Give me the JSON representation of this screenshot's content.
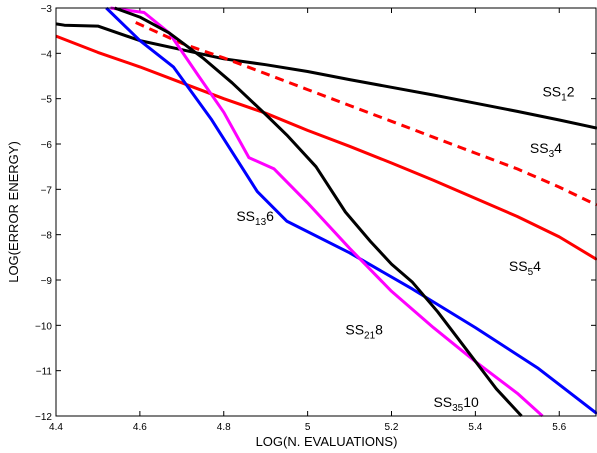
{
  "chart_data": {
    "type": "line",
    "title": "",
    "xlabel": "LOG(N. EVALUATIONS)",
    "ylabel": "LOG(ERROR ENERGY)",
    "xlim": [
      4.4,
      5.69
    ],
    "ylim": [
      -12,
      -3
    ],
    "xticks": [
      4.4,
      4.6,
      4.8,
      5,
      5.2,
      5.4,
      5.6
    ],
    "xtick_labels": [
      "4.4",
      "4.6",
      "4.8",
      "5",
      "5.2",
      "5.4",
      "5.6"
    ],
    "yticks": [
      -3,
      -4,
      -5,
      -6,
      -7,
      -8,
      -9,
      -10,
      -11,
      -12
    ],
    "ytick_labels": [
      "−3",
      "−4",
      "−5",
      "−6",
      "−7",
      "−8",
      "−9",
      "−10",
      "−11",
      "−12"
    ],
    "grid": false,
    "series": [
      {
        "label_pre": "SS",
        "label_sub": "1",
        "label_post": "2",
        "label_at": [
          5.56,
          -4.95
        ],
        "color": "#000000",
        "dash": false,
        "x": [
          4.4,
          4.42,
          4.5,
          4.6,
          4.7,
          4.8,
          4.9,
          5.0,
          5.1,
          5.2,
          5.3,
          5.4,
          5.5,
          5.6,
          5.69
        ],
        "y": [
          -3.35,
          -3.38,
          -3.4,
          -3.72,
          -3.92,
          -4.12,
          -4.25,
          -4.4,
          -4.58,
          -4.75,
          -4.92,
          -5.1,
          -5.28,
          -5.47,
          -5.65
        ]
      },
      {
        "label_pre": "SS",
        "label_sub": "3",
        "label_post": "4",
        "label_at": [
          5.53,
          -6.2
        ],
        "color": "#ff0000",
        "dash": true,
        "x": [
          4.59,
          4.7,
          4.8,
          4.9,
          5.0,
          5.1,
          5.2,
          5.3,
          5.4,
          5.5,
          5.6,
          5.69
        ],
        "y": [
          -3.32,
          -3.78,
          -4.1,
          -4.45,
          -4.8,
          -5.15,
          -5.5,
          -5.85,
          -6.2,
          -6.55,
          -6.95,
          -7.35
        ]
      },
      {
        "label_pre": "SS",
        "label_sub": "5",
        "label_post": "4",
        "label_at": [
          5.48,
          -8.8
        ],
        "color": "#ff0000",
        "dash": false,
        "x": [
          4.4,
          4.5,
          4.6,
          4.7,
          4.8,
          4.9,
          5.0,
          5.1,
          5.2,
          5.3,
          5.4,
          5.5,
          5.6,
          5.69
        ],
        "y": [
          -3.62,
          -3.98,
          -4.3,
          -4.65,
          -5.0,
          -5.32,
          -5.7,
          -6.05,
          -6.42,
          -6.8,
          -7.2,
          -7.6,
          -8.05,
          -8.55
        ]
      },
      {
        "label_pre": "SS",
        "label_sub": "13",
        "label_post": "6",
        "label_at": [
          4.83,
          -7.7
        ],
        "color": "#0000ff",
        "dash": false,
        "x": [
          4.52,
          4.6,
          4.68,
          4.77,
          4.88,
          4.95,
          5.1,
          5.25,
          5.4,
          5.55,
          5.69
        ],
        "y": [
          -3.0,
          -3.72,
          -4.3,
          -5.45,
          -7.05,
          -7.7,
          -8.4,
          -9.2,
          -10.05,
          -10.95,
          -11.95
        ]
      },
      {
        "label_pre": "SS",
        "label_sub": "21",
        "label_post": "8",
        "label_at": [
          5.09,
          -10.2
        ],
        "color": "#ff00ff",
        "dash": false,
        "x": [
          4.53,
          4.61,
          4.67,
          4.74,
          4.8,
          4.86,
          4.92,
          5.0,
          5.1,
          5.2,
          5.3,
          5.4,
          5.5,
          5.56
        ],
        "y": [
          -3.0,
          -3.1,
          -3.55,
          -4.5,
          -5.3,
          -6.3,
          -6.55,
          -7.3,
          -8.3,
          -9.25,
          -10.05,
          -10.8,
          -11.5,
          -12.0
        ]
      },
      {
        "label_pre": "SS",
        "label_sub": "35",
        "label_post": "10",
        "label_at": [
          5.3,
          -11.8
        ],
        "color": "#000000",
        "dash": false,
        "x": [
          4.54,
          4.6,
          4.67,
          4.75,
          4.82,
          4.9,
          4.95,
          5.02,
          5.09,
          5.15,
          5.2,
          5.25,
          5.31,
          5.38,
          5.45,
          5.51
        ],
        "y": [
          -3.0,
          -3.2,
          -3.55,
          -4.1,
          -4.65,
          -5.35,
          -5.8,
          -6.5,
          -7.5,
          -8.15,
          -8.65,
          -9.05,
          -9.7,
          -10.55,
          -11.4,
          -12.0
        ]
      }
    ]
  }
}
